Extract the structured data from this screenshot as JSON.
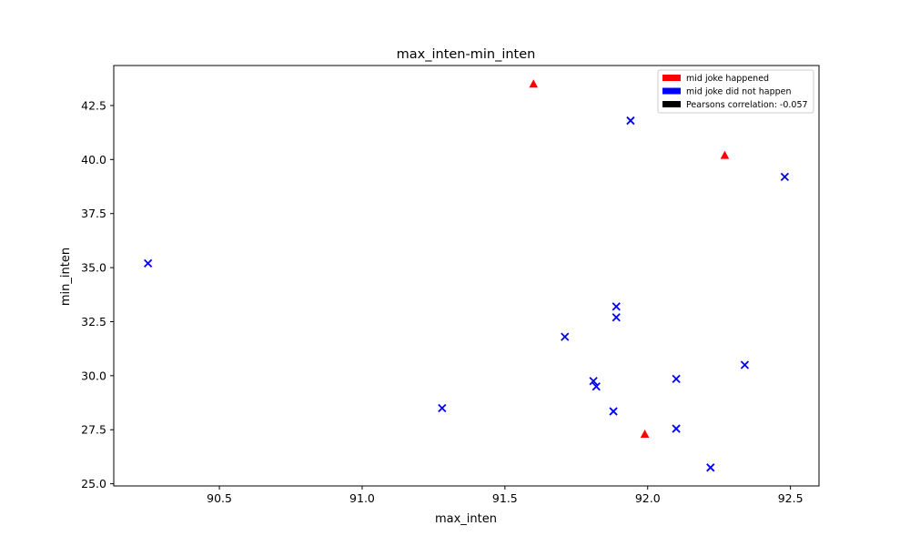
{
  "chart_data": {
    "type": "scatter",
    "title": "max_inten-min_inten",
    "xlabel": "max_inten",
    "ylabel": "min_inten",
    "xlim": [
      90.13,
      92.6
    ],
    "ylim": [
      24.9,
      44.35
    ],
    "xticks": [
      90.5,
      91.0,
      91.5,
      92.0,
      92.5
    ],
    "xtick_labels": [
      "90.5",
      "91.0",
      "91.5",
      "92.0",
      "92.5"
    ],
    "yticks": [
      25.0,
      27.5,
      30.0,
      32.5,
      35.0,
      37.5,
      40.0,
      42.5
    ],
    "ytick_labels": [
      "25.0",
      "27.5",
      "30.0",
      "32.5",
      "35.0",
      "37.5",
      "40.0",
      "42.5"
    ],
    "grid": false,
    "legend_position": "top-right",
    "legend": [
      {
        "label": "mid joke happened",
        "color": "#ff0000"
      },
      {
        "label": "mid joke did not happen",
        "color": "#0000ff"
      },
      {
        "label": "Pearsons correlation: -0.057",
        "color": "#000000"
      }
    ],
    "series": [
      {
        "marker": "triangle",
        "color": "#ff0000",
        "points": [
          {
            "x": 91.6,
            "y": 43.5
          },
          {
            "x": 92.27,
            "y": 40.2
          },
          {
            "x": 91.99,
            "y": 27.3
          }
        ]
      },
      {
        "marker": "x",
        "color": "#0000ff",
        "points": [
          {
            "x": 91.94,
            "y": 41.8
          },
          {
            "x": 92.48,
            "y": 39.2
          },
          {
            "x": 90.25,
            "y": 35.2
          },
          {
            "x": 91.89,
            "y": 33.2
          },
          {
            "x": 91.89,
            "y": 32.7
          },
          {
            "x": 91.71,
            "y": 31.8
          },
          {
            "x": 92.34,
            "y": 30.5
          },
          {
            "x": 91.81,
            "y": 29.75
          },
          {
            "x": 92.1,
            "y": 29.85
          },
          {
            "x": 91.82,
            "y": 29.5
          },
          {
            "x": 91.28,
            "y": 28.5
          },
          {
            "x": 91.88,
            "y": 28.35
          },
          {
            "x": 92.1,
            "y": 27.55
          },
          {
            "x": 92.22,
            "y": 25.75
          }
        ]
      }
    ]
  }
}
